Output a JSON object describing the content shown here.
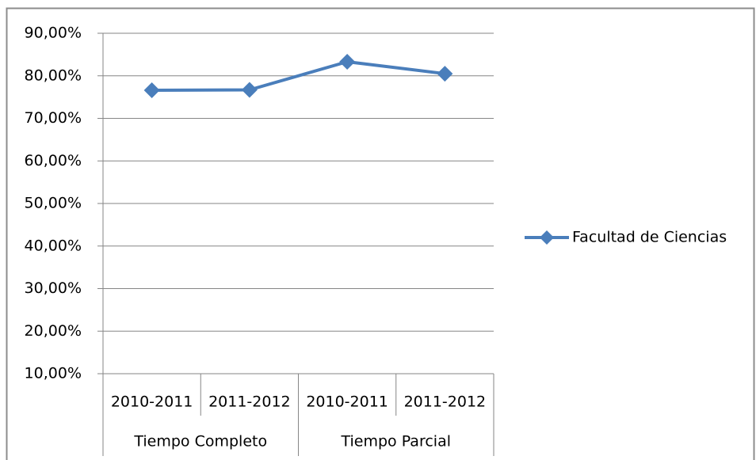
{
  "chart_data": {
    "type": "line",
    "categories": [
      "2010-2011",
      "2011-2012",
      "2010-2011",
      "2011-2012"
    ],
    "groups": [
      "Tiempo Completo",
      "Tiempo Parcial"
    ],
    "series": [
      {
        "name": "Facultad de Ciencias",
        "color": "#4a7ebb",
        "values": [
          76.6,
          76.7,
          83.3,
          80.5
        ]
      }
    ],
    "ylim": [
      10,
      90
    ],
    "yticks": [
      {
        "value": 10,
        "label": "10,00%"
      },
      {
        "value": 20,
        "label": "20,00%"
      },
      {
        "value": 30,
        "label": "30,00%"
      },
      {
        "value": 40,
        "label": "40,00%"
      },
      {
        "value": 50,
        "label": "50,00%"
      },
      {
        "value": 60,
        "label": "60,00%"
      },
      {
        "value": 70,
        "label": "70,00%"
      },
      {
        "value": 80,
        "label": "80,00%"
      },
      {
        "value": 90,
        "label": "90,00%"
      }
    ],
    "grid": true,
    "legend": "right"
  }
}
